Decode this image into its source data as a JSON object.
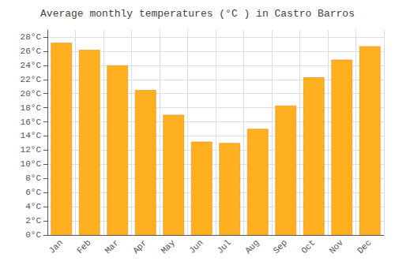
{
  "chart_data": {
    "type": "bar",
    "title": "Average monthly temperatures (°C ) in Castro Barros",
    "categories": [
      "Jan",
      "Feb",
      "Mar",
      "Apr",
      "May",
      "Jun",
      "Jul",
      "Aug",
      "Sep",
      "Oct",
      "Nov",
      "Dec"
    ],
    "values": [
      27.2,
      26.2,
      24.0,
      20.5,
      17.0,
      13.2,
      13.0,
      15.0,
      18.3,
      22.3,
      24.8,
      26.7
    ],
    "color": "#FFB020",
    "ylim": [
      0,
      29
    ],
    "yticks": [
      {
        "value": 0,
        "label": "0°C"
      },
      {
        "value": 2,
        "label": "2°C"
      },
      {
        "value": 4,
        "label": "4°C"
      },
      {
        "value": 6,
        "label": "6°C"
      },
      {
        "value": 8,
        "label": "8°C"
      },
      {
        "value": 10,
        "label": "10°C"
      },
      {
        "value": 12,
        "label": "12°C"
      },
      {
        "value": 14,
        "label": "14°C"
      },
      {
        "value": 16,
        "label": "16°C"
      },
      {
        "value": 18,
        "label": "18°C"
      },
      {
        "value": 20,
        "label": "20°C"
      },
      {
        "value": 22,
        "label": "22°C"
      },
      {
        "value": 24,
        "label": "24°C"
      },
      {
        "value": 26,
        "label": "26°C"
      },
      {
        "value": 28,
        "label": "28°C"
      }
    ],
    "grid": true
  }
}
